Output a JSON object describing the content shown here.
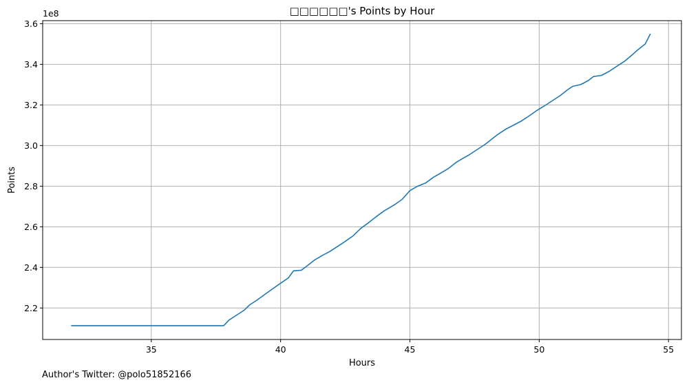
{
  "chart_data": {
    "type": "line",
    "title": "□□□□□□'s Points by Hour",
    "xlabel": "Hours",
    "ylabel": "Points",
    "y_offset_label": "1e8",
    "xlim": [
      30.8,
      55.5
    ],
    "ylim": [
      2.045,
      3.615
    ],
    "y_scale_factor": 100000000,
    "x_ticks": [
      35,
      40,
      45,
      50,
      55
    ],
    "y_ticks": [
      2.2,
      2.4,
      2.6,
      2.8,
      3.0,
      3.2,
      3.4,
      3.6
    ],
    "x_tick_labels": [
      "35",
      "40",
      "45",
      "50",
      "55"
    ],
    "y_tick_labels": [
      "2.2",
      "2.4",
      "2.6",
      "2.8",
      "3.0",
      "3.2",
      "3.4",
      "3.6"
    ],
    "grid": true,
    "series_color": "#1f77b4",
    "series": [
      {
        "x": [
          31.9,
          37.8,
          38.0,
          38.3,
          38.6,
          38.8,
          39.1,
          39.4,
          39.7,
          40.0,
          40.3,
          40.5,
          40.8,
          41.0,
          41.3,
          41.6,
          41.9,
          42.2,
          42.5,
          42.8,
          43.1,
          43.4,
          43.7,
          44.0,
          44.4,
          44.7,
          45.0,
          45.3,
          45.6,
          45.9,
          46.2,
          46.5,
          46.8,
          47.0,
          47.3,
          47.6,
          47.9,
          48.1,
          48.4,
          48.7,
          49.0,
          49.3,
          49.6,
          49.9,
          50.2,
          50.5,
          50.8,
          51.1,
          51.3,
          51.6,
          51.9,
          52.1,
          52.4,
          52.7,
          53.0,
          53.3,
          53.6,
          53.8,
          54.1,
          54.3
        ],
        "y": [
          2.113,
          2.113,
          2.14,
          2.165,
          2.19,
          2.215,
          2.24,
          2.268,
          2.295,
          2.322,
          2.348,
          2.383,
          2.386,
          2.405,
          2.435,
          2.458,
          2.478,
          2.503,
          2.528,
          2.555,
          2.592,
          2.62,
          2.65,
          2.678,
          2.708,
          2.735,
          2.778,
          2.8,
          2.815,
          2.843,
          2.865,
          2.888,
          2.918,
          2.933,
          2.955,
          2.98,
          3.005,
          3.025,
          3.055,
          3.08,
          3.1,
          3.12,
          3.145,
          3.172,
          3.195,
          3.22,
          3.245,
          3.275,
          3.292,
          3.3,
          3.32,
          3.34,
          3.345,
          3.365,
          3.39,
          3.415,
          3.447,
          3.47,
          3.5,
          3.55
        ]
      }
    ]
  },
  "footer": {
    "note": "Author's Twitter: @polo51852166"
  }
}
